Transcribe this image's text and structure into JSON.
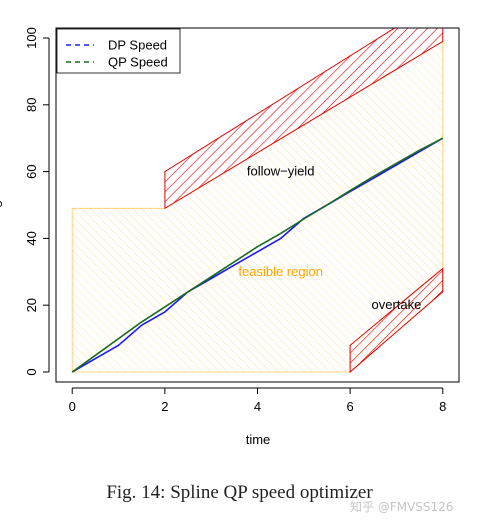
{
  "chart_data": {
    "type": "line",
    "title": "",
    "xlabel": "time",
    "ylabel": "s",
    "xlim": [
      -0.35,
      8.35
    ],
    "ylim": [
      -3,
      103
    ],
    "x_ticks": [
      0,
      2,
      4,
      6,
      8
    ],
    "y_ticks": [
      0,
      20,
      40,
      60,
      80,
      100
    ],
    "grid": false,
    "legend": {
      "placement": "top-left",
      "entries": [
        "DP Speed",
        "QP Speed"
      ]
    },
    "series": [
      {
        "name": "DP Speed",
        "color": "#1a1aff",
        "x": [
          0,
          0.5,
          1,
          1.5,
          2,
          2.5,
          3,
          3.5,
          4,
          4.5,
          5,
          5.5,
          6,
          6.5,
          7,
          7.5,
          8
        ],
        "y": [
          0,
          4,
          8,
          14,
          18,
          24,
          28,
          32,
          36,
          40,
          46,
          50,
          54,
          58,
          62,
          66,
          70
        ]
      },
      {
        "name": "QP Speed",
        "color": "#1a6b1a",
        "x": [
          0,
          0.5,
          1,
          1.5,
          2,
          2.5,
          3,
          3.5,
          4,
          4.5,
          5,
          5.5,
          6,
          6.5,
          7,
          7.5,
          8
        ],
        "y": [
          0,
          5,
          10,
          15,
          19.5,
          24,
          28.5,
          33,
          37.5,
          41.5,
          45.8,
          50,
          54.3,
          58.5,
          62.5,
          66.4,
          70
        ]
      }
    ],
    "regions": [
      {
        "name": "feasible region",
        "color": "#ffa500",
        "polygon": [
          [
            0,
            0
          ],
          [
            0,
            49
          ],
          [
            2,
            49
          ],
          [
            8,
            99
          ],
          [
            8,
            24
          ],
          [
            6,
            0
          ]
        ]
      },
      {
        "name": "follow-yield",
        "color": "#e00000",
        "polygon": [
          [
            2,
            49
          ],
          [
            2,
            60
          ],
          [
            8,
            112
          ],
          [
            8,
            99
          ]
        ]
      },
      {
        "name": "overtake",
        "color": "#e00000",
        "polygon": [
          [
            6,
            0
          ],
          [
            6,
            8
          ],
          [
            8,
            31
          ],
          [
            8,
            24
          ]
        ]
      }
    ],
    "annotations": [
      {
        "text": "follow−yield",
        "x": 4.5,
        "y": 60,
        "color": "#000000"
      },
      {
        "text": "feasible region",
        "x": 4.5,
        "y": 30,
        "color": "#ffa500"
      },
      {
        "text": "overtake",
        "x": 7.0,
        "y": 20,
        "color": "#000000"
      }
    ]
  },
  "caption": "Fig. 14: Spline QP speed optimizer",
  "watermark": "知乎 @FMVSS126"
}
